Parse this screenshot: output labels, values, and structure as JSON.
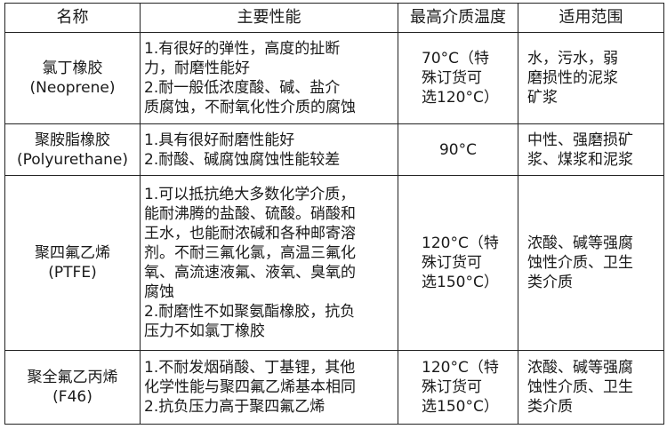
{
  "headers": [
    "名称",
    "主要性能",
    "最高介质温度",
    "适用范围"
  ],
  "rows": [
    {
      "name": "氯丁橡胶\n(Neoprene)",
      "performance": "1.有很好的弹性，高度的扯断\n力，耐磨性能好\n2.耐一般低浓度酸、碱、盐介\n质腐蚀，不耐氧化性介质的腐蚀",
      "temp": "70°C（特\n殊订货可\n选120°C）",
      "application": "水，污水，弱\n磨损性的泥浆\n矿浆"
    },
    {
      "name": "聚胺脂橡胶\n(Polyurethane)",
      "performance": "1.具有很好耐磨性能好\n2.耐酸、碱腐蚀腐蚀性能较差",
      "temp": "90°C",
      "application": "中性、强磨损矿\n浆、煤浆和泥浆"
    },
    {
      "name": "聚四氟乙烯\n(PTFE)",
      "performance": "1.可以抵抗绝大多数化学介质，\n能耐沸腾的盐酸、硫酸。硝酸和\n王水，也能耐浓碱和各种邮寄溶\n剂。不耐三氟化氯，高温三氟化\n氧、高流速液氟、液氧、臭氧的\n腐蚀\n2.耐磨性不如聚氨酯橡胶，抗负\n压力不如氯丁橡胶",
      "temp": "120°C（特\n殊订货可\n选150°C）",
      "application": "浓酸、碱等强腐\n蚀性介质、卫生\n类介质"
    },
    {
      "name": "聚全氟乙丙烯\n(F46)",
      "performance": "1.不耐发烟硝酸、丁基锂，其他\n化学性能与聚四氟乙烯基本相同\n2.抗负压力高于聚四氟乙烯",
      "temp": "120°C（特\n殊订货可\n选150°C）",
      "application": "浓酸、碱等强腐\n蚀性介质、卫生\n类介质"
    }
  ]
}
